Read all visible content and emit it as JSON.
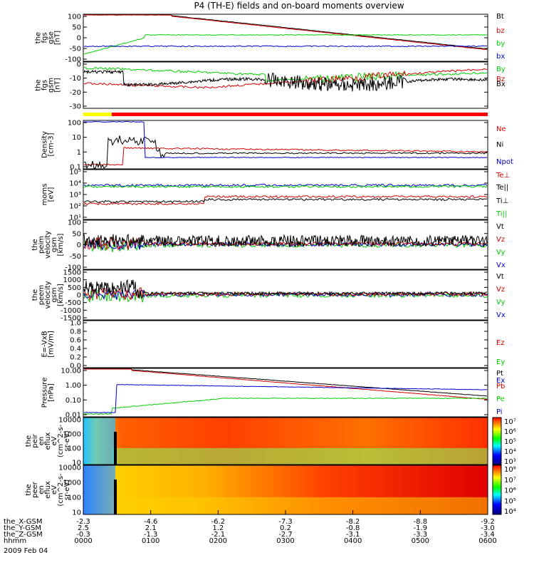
{
  "title": "P4 (TH-E) fields and on-board moments overview",
  "date_label": "2009 Feb 04",
  "colors": {
    "black": "#000000",
    "red": "#d40000",
    "green": "#00d000",
    "blue": "#0000cc",
    "yellow": "#ffff00",
    "bar_red": "#ff0000"
  },
  "chart_data": [
    {
      "type": "line",
      "id": "fgs-gse",
      "ylabel": [
        "the",
        "fgs",
        "gse",
        "[nT]"
      ],
      "yticks": [
        "100",
        "50",
        "0",
        "-50",
        "-100"
      ],
      "ylim": [
        -100,
        100
      ],
      "legend": [
        {
          "text": "Bt",
          "color": "black"
        },
        {
          "text": "bz",
          "color": "red"
        },
        {
          "text": "by",
          "color": "green"
        },
        {
          "text": "bx",
          "color": "blue"
        }
      ]
    },
    {
      "type": "line",
      "id": "fgs-gsm",
      "ylabel": [
        "the",
        "fgs",
        "gsm",
        "[nT]"
      ],
      "yticks": [
        "0",
        "-10",
        "-20",
        "-30"
      ],
      "ylim": [
        -35,
        5
      ],
      "legend": [
        {
          "text": "By",
          "color": "green"
        },
        {
          "text": "Bz",
          "color": "red"
        },
        {
          "text": "Bx",
          "color": "black"
        }
      ]
    },
    {
      "type": "line",
      "id": "density",
      "scale": "log",
      "ylabel": [
        "Density",
        "[cm-3]"
      ],
      "yticks": [
        "100",
        "10",
        "1",
        "0.1"
      ],
      "legend": [
        {
          "text": "Ne",
          "color": "red"
        },
        {
          "text": "Ni",
          "color": "black"
        },
        {
          "text": "Npot",
          "color": "blue"
        }
      ]
    },
    {
      "type": "line",
      "id": "temperature",
      "scale": "log",
      "ylabel": [
        "moms",
        "[eV]"
      ],
      "yticks": [
        "10⁵",
        "10⁴",
        "10³",
        "10²",
        "10¹"
      ],
      "legend": [
        {
          "text": "Te⊥",
          "color": "red"
        },
        {
          "text": "Te||",
          "color": "black"
        },
        {
          "text": "Ti⊥",
          "color": "black"
        },
        {
          "text": "Ti||",
          "color": "green"
        }
      ]
    },
    {
      "type": "line",
      "id": "peim-velocity",
      "ylabel": [
        "the",
        "peim",
        "velocity",
        "gsm",
        "[km/s]"
      ],
      "yticks": [
        "100",
        "50",
        "0",
        "-50",
        "-100"
      ],
      "ylim": [
        -100,
        100
      ],
      "legend": [
        {
          "text": "Vt",
          "color": "black"
        },
        {
          "text": "Vz",
          "color": "red"
        },
        {
          "text": "Vy",
          "color": "green"
        },
        {
          "text": "Vx",
          "color": "blue"
        }
      ]
    },
    {
      "type": "line",
      "id": "peem-velocity",
      "ylabel": [
        "the",
        "peem",
        "velocity",
        "gsm",
        "[km/s]"
      ],
      "yticks": [
        "1500",
        "1000",
        "500",
        "0",
        "-500",
        "-1000",
        "-1500"
      ],
      "ylim": [
        -1500,
        1500
      ],
      "legend": [
        {
          "text": "Vt",
          "color": "black"
        },
        {
          "text": "Vz",
          "color": "red"
        },
        {
          "text": "Vy",
          "color": "green"
        },
        {
          "text": "Vx",
          "color": "blue"
        }
      ]
    },
    {
      "type": "line",
      "id": "efield",
      "ylabel": [
        "E=-VxB",
        "[mV/m]"
      ],
      "yticks": [
        "1.0",
        "0.8",
        "0.6",
        "0.4",
        "0.2",
        "0.0"
      ],
      "ylim": [
        0,
        1
      ],
      "legend": [
        {
          "text": "Ez",
          "color": "red"
        },
        {
          "text": "Ey",
          "color": "green"
        },
        {
          "text": "Ex",
          "color": "blue"
        }
      ]
    },
    {
      "type": "line",
      "id": "pressure",
      "scale": "log",
      "ylabel": [
        "Pressure",
        "[nPa]"
      ],
      "yticks": [
        "10.00",
        "1.00",
        "0.10",
        "0.01"
      ],
      "legend": [
        {
          "text": "Pt",
          "color": "black"
        },
        {
          "text": "Pb",
          "color": "red"
        },
        {
          "text": "Pe",
          "color": "green"
        },
        {
          "text": "Pi",
          "color": "blue"
        }
      ]
    },
    {
      "type": "heatmap",
      "id": "peir-spectrogram",
      "ylabel": [
        "the",
        "peir",
        "en",
        "eflux",
        "eV",
        "(cm^2-s-",
        "sr-eV)"
      ],
      "yticks": [
        "10000",
        "1000",
        "100",
        "10"
      ],
      "colorbar_ticks": [
        "10⁷",
        "10⁶",
        "10⁵",
        "10⁴",
        "10³"
      ]
    },
    {
      "type": "heatmap",
      "id": "peer-spectrogram",
      "ylabel": [
        "the",
        "peer",
        "en",
        "eflux",
        "eV",
        "(cm^2-s-",
        "sr-eV)"
      ],
      "yticks": [
        "10000",
        "1000",
        "100",
        "10"
      ],
      "colorbar_ticks": [
        "10⁸",
        "10⁷",
        "10⁶",
        "10⁵",
        "10⁴"
      ]
    }
  ],
  "x_axis": {
    "row_labels": [
      "the_X-GSM",
      "the_Y-GSM",
      "the_Z-GSM",
      "hhmm"
    ],
    "columns": [
      [
        "-2.3",
        "2.5",
        "-0.3",
        "0000"
      ],
      [
        "-4.6",
        "2.1",
        "-1.3",
        "0100"
      ],
      [
        "-6.2",
        "1.2",
        "-2.1",
        "0200"
      ],
      [
        "-7.3",
        "0.2",
        "-2.7",
        "0300"
      ],
      [
        "-8.2",
        "-0.8",
        "-3.1",
        "0400"
      ],
      [
        "-8.8",
        "-1.9",
        "-3.3",
        "0500"
      ],
      [
        "-9.2",
        "-3.0",
        "-3.4",
        "0600"
      ]
    ]
  }
}
